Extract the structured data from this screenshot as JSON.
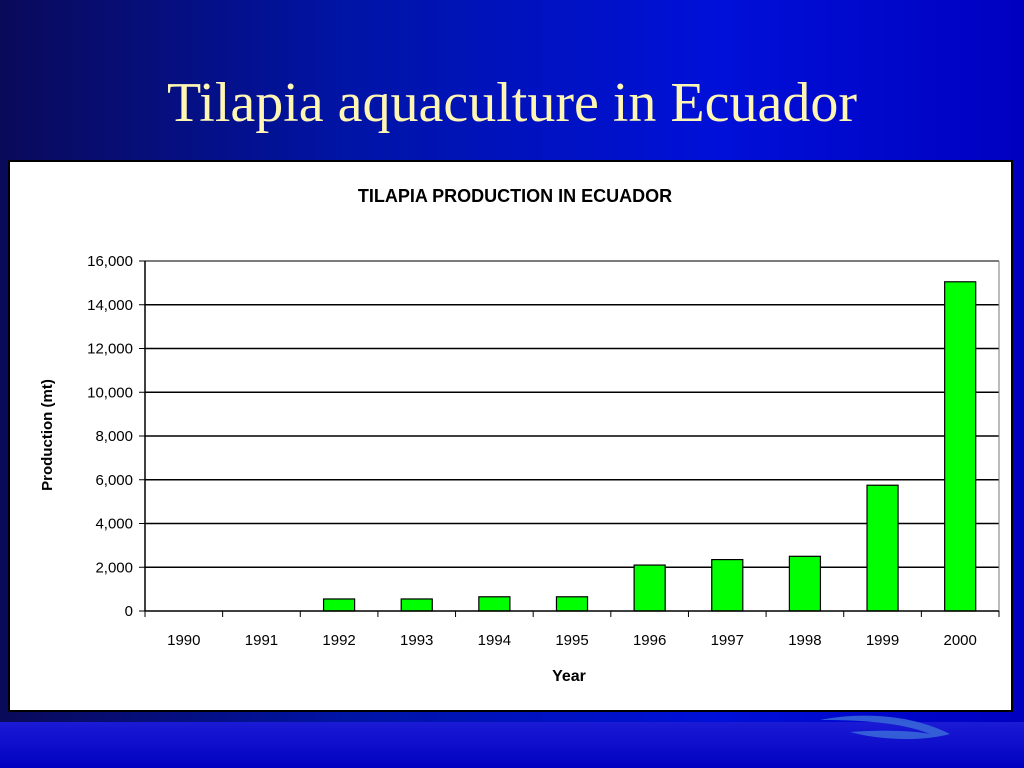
{
  "slide": {
    "title": "Tilapia aquaculture in Ecuador"
  },
  "colors": {
    "bar": "#00ff00",
    "bar_stroke": "#000000",
    "title": "#fff6b4"
  },
  "chart_data": {
    "type": "bar",
    "title": "TILAPIA PRODUCTION IN ECUADOR",
    "xlabel": "Year",
    "ylabel": "Production (mt)",
    "categories": [
      "1990",
      "1991",
      "1992",
      "1993",
      "1994",
      "1995",
      "1996",
      "1997",
      "1998",
      "1999",
      "2000"
    ],
    "values": [
      0,
      0,
      550,
      550,
      650,
      650,
      2100,
      2350,
      2500,
      5750,
      15050
    ],
    "ylim": [
      0,
      16000
    ],
    "yticks": [
      0,
      2000,
      4000,
      6000,
      8000,
      10000,
      12000,
      14000,
      16000
    ],
    "ytick_labels": [
      "0",
      "2,000",
      "4,000",
      "6,000",
      "8,000",
      "10,000",
      "12,000",
      "14,000",
      "16,000"
    ],
    "grid": true,
    "legend": "none"
  }
}
